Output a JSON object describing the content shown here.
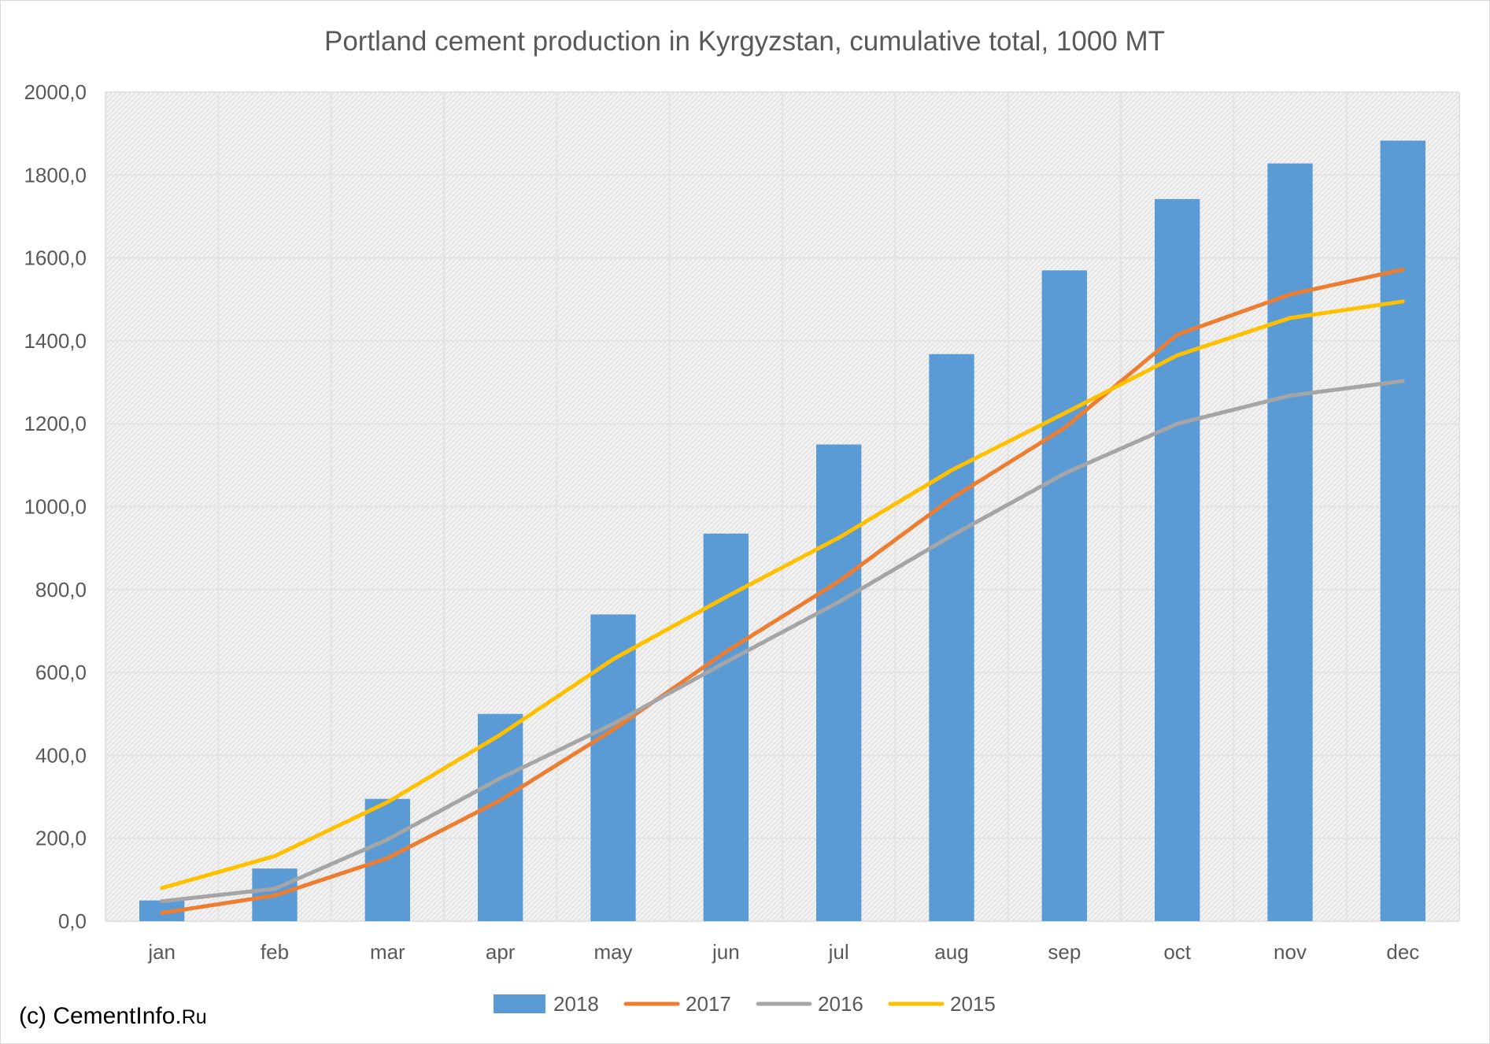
{
  "chart_data": {
    "type": "bar+line",
    "title": "Portland cement production in Kyrgyzstan, cumulative total, 1000 MT",
    "categories": [
      "jan",
      "feb",
      "mar",
      "apr",
      "may",
      "jun",
      "jul",
      "aug",
      "sep",
      "oct",
      "nov",
      "dec"
    ],
    "ylim": [
      0,
      2000
    ],
    "yticks": [
      "0,0",
      "200,0",
      "400,0",
      "600,0",
      "800,0",
      "1000,0",
      "1200,0",
      "1400,0",
      "1600,0",
      "1800,0",
      "2000,0"
    ],
    "grid": true,
    "legend_position": "bottom",
    "series": [
      {
        "name": "2018",
        "kind": "bar",
        "color": "#5b9bd5",
        "values": [
          50,
          127,
          295,
          500,
          740,
          935,
          1150,
          1368,
          1570,
          1742,
          1828,
          1883
        ]
      },
      {
        "name": "2017",
        "kind": "line",
        "color": "#ed7d31",
        "values": [
          20,
          62,
          152,
          292,
          462,
          650,
          820,
          1020,
          1190,
          1415,
          1512,
          1572
        ]
      },
      {
        "name": "2016",
        "kind": "line",
        "color": "#a5a5a5",
        "values": [
          48,
          78,
          197,
          345,
          476,
          625,
          770,
          930,
          1080,
          1200,
          1268,
          1303
        ]
      },
      {
        "name": "2015",
        "kind": "line",
        "color": "#ffc000",
        "values": [
          80,
          157,
          287,
          450,
          632,
          782,
          925,
          1088,
          1225,
          1365,
          1455,
          1495
        ]
      }
    ]
  },
  "credit": {
    "main": "(c) CementInfo.",
    "suffix": "Ru"
  }
}
